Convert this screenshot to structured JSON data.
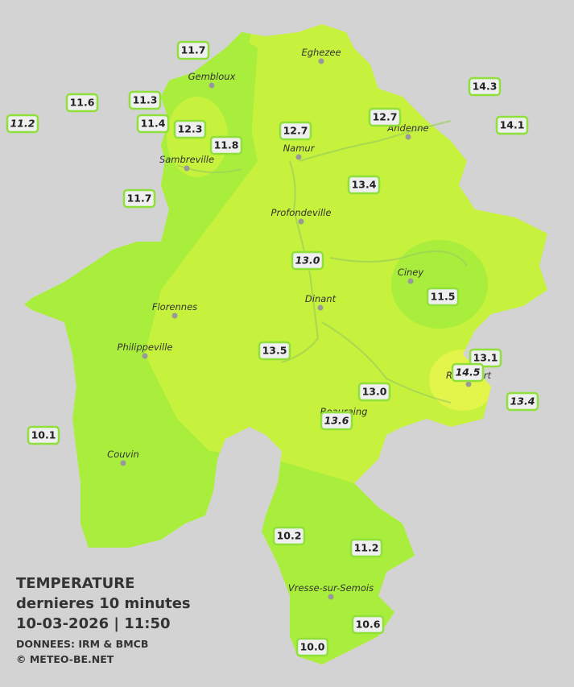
{
  "title": {
    "lines": [
      "TEMPERATURE",
      "dernieres 10 minutes",
      "10-03-2026  |  11:50"
    ],
    "credits": [
      "DONNEES: IRM & BMCB",
      "© METEO-BE.NET"
    ]
  },
  "cities": [
    "Eghezee",
    "Gembloux",
    "Andenne",
    "Namur",
    "Sambreville",
    "Profondeville",
    "Ciney",
    "Dinant",
    "Florennes",
    "Philippeville",
    "Rochefort",
    "Beauraing",
    "Couvin",
    "Vresse-sur-Semois"
  ],
  "stations": [
    {
      "label": "11.7",
      "italic": false
    },
    {
      "label": "11.6",
      "italic": false
    },
    {
      "label": "11.2",
      "italic": true
    },
    {
      "label": "11.3",
      "italic": false
    },
    {
      "label": "11.4",
      "italic": false
    },
    {
      "label": "12.3",
      "italic": false
    },
    {
      "label": "11.8",
      "italic": false
    },
    {
      "label": "12.7",
      "italic": false
    },
    {
      "label": "12.7",
      "italic": false
    },
    {
      "label": "14.3",
      "italic": false
    },
    {
      "label": "14.1",
      "italic": false
    },
    {
      "label": "11.7",
      "italic": false
    },
    {
      "label": "13.4",
      "italic": false
    },
    {
      "label": "13.0",
      "italic": true
    },
    {
      "label": "11.5",
      "italic": false
    },
    {
      "label": "13.5",
      "italic": false
    },
    {
      "label": "13.1",
      "italic": false
    },
    {
      "label": "14.5",
      "italic": true
    },
    {
      "label": "13.0",
      "italic": false
    },
    {
      "label": "13.4",
      "italic": true
    },
    {
      "label": "13.6",
      "italic": true
    },
    {
      "label": "10.1",
      "italic": false
    },
    {
      "label": "10.2",
      "italic": false
    },
    {
      "label": "11.2",
      "italic": false
    },
    {
      "label": "10.6",
      "italic": false
    },
    {
      "label": "10.0",
      "italic": false
    }
  ]
}
